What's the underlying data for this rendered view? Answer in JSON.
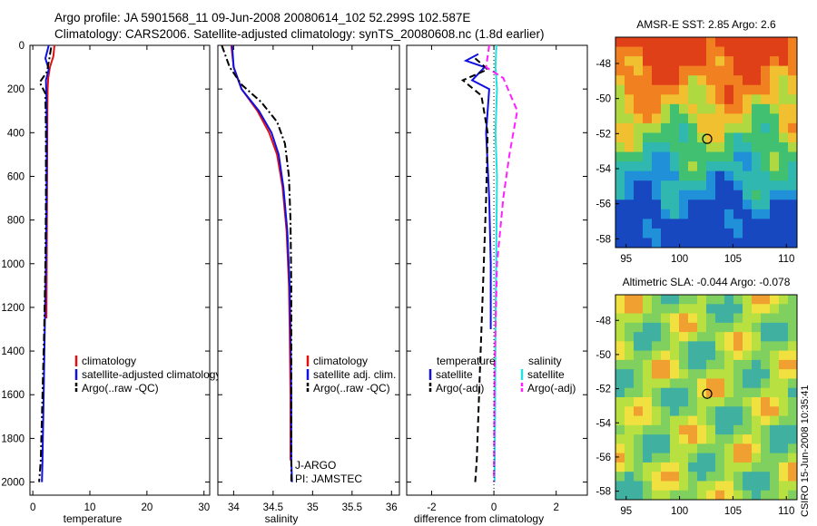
{
  "title": {
    "line1": "Argo profile: JA 5901568_11 09-Jun-2008 20080614_102 52.299S 102.587E",
    "line2": "Climatology: CARS2006. Satellite-adjusted climatology: synTS_20080608.nc (1.8d earlier)"
  },
  "watermark": "CSIRO 15-Jun-2008 10:35:41",
  "colors": {
    "climatology": "#e01010",
    "satellite": "#1010e0",
    "argo": "#000000",
    "salinity_satellite": "#20e0e0",
    "salinity_argo": "#ff20ff"
  },
  "chart_data": [
    {
      "type": "line",
      "name": "temperature-profile",
      "xlabel": "temperature",
      "ylabel": "",
      "xlim": [
        -0.5,
        31
      ],
      "ylim": [
        2060,
        0
      ],
      "xticks": [
        "0",
        "10",
        "20",
        "30"
      ],
      "xtick_values": [
        0,
        10,
        20,
        30
      ],
      "yticks": [
        "0",
        "200",
        "400",
        "600",
        "800",
        "1000",
        "1200",
        "1400",
        "1600",
        "1800",
        "2000"
      ],
      "ytick_values": [
        0,
        200,
        400,
        600,
        800,
        1000,
        1200,
        1400,
        1600,
        1800,
        2000
      ],
      "legend": [
        "climatology",
        "satellite-adjusted climatology",
        "Argo(..raw -QC)"
      ],
      "series": [
        {
          "name": "climatology",
          "style": "solid",
          "color": "#e01010",
          "x": [
            3.8,
            3.6,
            3.0,
            2.7,
            2.6,
            2.55,
            2.5,
            2.45,
            2.4
          ],
          "y": [
            0,
            50,
            100,
            150,
            200,
            300,
            600,
            1000,
            1250
          ]
        },
        {
          "name": "satellite-adjusted climatology",
          "style": "solid",
          "color": "#1010e0",
          "x": [
            2.8,
            2.2,
            2.8,
            2.3,
            2.4,
            2.45,
            2.4,
            2.3,
            2.1,
            1.9,
            1.7,
            1.6
          ],
          "y": [
            0,
            60,
            110,
            160,
            250,
            400,
            700,
            1000,
            1300,
            1600,
            1900,
            2000
          ]
        },
        {
          "name": "Argo(..raw -QC)",
          "style": "dashdot",
          "color": "#000000",
          "x": [
            3.2,
            2.9,
            2.5,
            1.2,
            2.2,
            2.3,
            2.3,
            2.2,
            2.0,
            1.7,
            1.4,
            1.1
          ],
          "y": [
            10,
            60,
            120,
            170,
            220,
            400,
            700,
            1000,
            1300,
            1600,
            1900,
            2000
          ]
        }
      ]
    },
    {
      "type": "line",
      "name": "salinity-profile",
      "xlabel": "salinity",
      "ylabel": "",
      "xlim": [
        33.8,
        36.1
      ],
      "ylim": [
        2060,
        0
      ],
      "xticks": [
        "34",
        "34.5",
        "35",
        "35.5",
        "36"
      ],
      "xtick_values": [
        34,
        34.5,
        35,
        35.5,
        36
      ],
      "legend": [
        "climatology",
        "satellite adj. clim.",
        "Argo(..raw -QC)"
      ],
      "annotations": [
        "J-ARGO",
        "PI: JAMSTEC"
      ],
      "series": [
        {
          "name": "climatology",
          "style": "solid",
          "color": "#e01010",
          "x": [
            33.97,
            34.0,
            34.1,
            34.3,
            34.45,
            34.55,
            34.62,
            34.67,
            34.7,
            34.71,
            34.72,
            34.72
          ],
          "y": [
            0,
            100,
            200,
            300,
            400,
            500,
            650,
            850,
            1100,
            1300,
            1600,
            1900
          ]
        },
        {
          "name": "satellite adj. clim.",
          "style": "solid",
          "color": "#1010e0",
          "x": [
            33.98,
            34.0,
            34.1,
            34.32,
            34.48,
            34.57,
            34.63,
            34.68,
            34.71,
            34.72,
            34.73,
            34.73,
            34.74
          ],
          "y": [
            0,
            100,
            200,
            300,
            400,
            500,
            650,
            850,
            1100,
            1300,
            1600,
            1900,
            2000
          ]
        },
        {
          "name": "Argo(..raw -QC)",
          "style": "dashdot",
          "color": "#000000",
          "x": [
            33.85,
            33.95,
            34.1,
            34.35,
            34.55,
            34.65,
            34.7,
            34.72,
            34.73,
            34.73,
            34.73,
            34.73
          ],
          "y": [
            0,
            100,
            180,
            260,
            350,
            450,
            600,
            800,
            1100,
            1400,
            1700,
            2000
          ]
        }
      ]
    },
    {
      "type": "line",
      "name": "difference-profile",
      "xlabel": "difference from climatology",
      "ylabel": "",
      "xlim": [
        -2.8,
        3.0
      ],
      "ylim": [
        2060,
        0
      ],
      "xticks": [
        "-2",
        "0",
        "2"
      ],
      "xtick_values": [
        -2,
        0,
        2
      ],
      "legend_headers": [
        "temperature",
        "salinity"
      ],
      "legend": [
        "satellite",
        "Argo(-adj)",
        "satellite",
        "Argo(-adj)"
      ],
      "series": [
        {
          "name": "temperature satellite",
          "style": "solid",
          "color": "#1010e0",
          "x": [
            -0.5,
            -0.9,
            -0.3,
            -0.7,
            -0.15,
            -0.25,
            -0.15,
            -0.1,
            -0.1
          ],
          "y": [
            40,
            70,
            100,
            160,
            200,
            400,
            700,
            1000,
            1300
          ]
        },
        {
          "name": "temperature Argo(-adj)",
          "style": "dashed",
          "color": "#000000",
          "x": [
            -0.6,
            -0.2,
            -1.0,
            -0.4,
            -0.2,
            -0.25,
            -0.35,
            -0.45,
            -0.55,
            -0.6
          ],
          "y": [
            60,
            110,
            160,
            230,
            400,
            700,
            1100,
            1500,
            1900,
            2000
          ]
        },
        {
          "name": "salinity satellite",
          "style": "solid",
          "color": "#20e0e0",
          "x": [
            0.08,
            0.05,
            0.1,
            0.05,
            0.1,
            0.08,
            0.05,
            0.04,
            0.02
          ],
          "y": [
            0,
            100,
            200,
            400,
            600,
            900,
            1300,
            1700,
            2000
          ]
        },
        {
          "name": "salinity Argo(-adj)",
          "style": "dashed",
          "color": "#ff20ff",
          "x": [
            -0.15,
            -0.25,
            0.3,
            0.75,
            0.5,
            0.3,
            0.1,
            0.02,
            0.0
          ],
          "y": [
            0,
            100,
            150,
            300,
            500,
            700,
            1000,
            1500,
            2000
          ]
        }
      ]
    },
    {
      "type": "heatmap",
      "name": "sst-map",
      "title": "AMSR-E SST: 2.85 Argo: 2.6",
      "xlim": [
        94,
        111
      ],
      "ylim": [
        -58.5,
        -46.5
      ],
      "xticks": [
        "95",
        "100",
        "105",
        "110"
      ],
      "xtick_values": [
        95,
        100,
        105,
        110
      ],
      "yticks": [
        "-48",
        "-50",
        "-52",
        "-54",
        "-56",
        "-58"
      ],
      "ytick_values": [
        -48,
        -50,
        -52,
        -54,
        -56,
        -58
      ],
      "marker": {
        "lon": 102.587,
        "lat": -52.299
      }
    },
    {
      "type": "heatmap",
      "name": "sla-map",
      "title": "Altimetric SLA: -0.044 Argo: -0.078",
      "xlim": [
        94,
        111
      ],
      "ylim": [
        -58.5,
        -46.5
      ],
      "xticks": [
        "95",
        "100",
        "105",
        "110"
      ],
      "xtick_values": [
        95,
        100,
        105,
        110
      ],
      "yticks": [
        "-48",
        "-50",
        "-52",
        "-54",
        "-56",
        "-58"
      ],
      "ytick_values": [
        -48,
        -50,
        -52,
        -54,
        -56,
        -58
      ],
      "marker": {
        "lon": 102.587,
        "lat": -52.299
      }
    }
  ]
}
